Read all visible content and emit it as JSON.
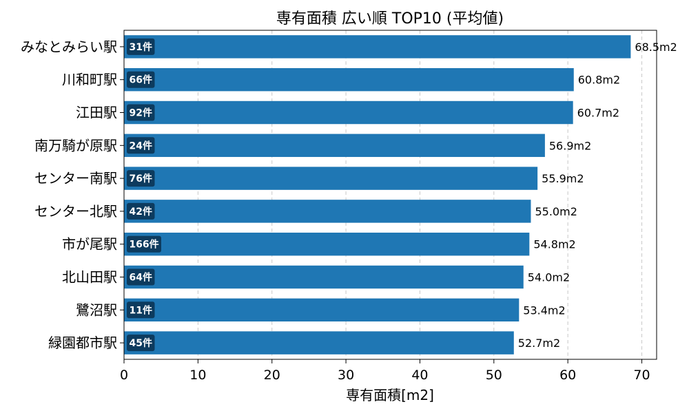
{
  "chart_data": {
    "type": "bar",
    "orientation": "horizontal",
    "title": "専有面積 広い順 TOP10 (平均値)",
    "xlabel": "専有面積[m2]",
    "ylabel": "",
    "xlim": [
      0,
      72
    ],
    "xticks": [
      0,
      10,
      20,
      30,
      40,
      50,
      60,
      70
    ],
    "grid": "x-dashed",
    "bar_color": "#1f77b4",
    "badge_color": "#0d3b5e",
    "value_suffix": "m2",
    "categories": [
      "みなとみらい駅",
      "川和町駅",
      "江田駅",
      "南万騎が原駅",
      "センター南駅",
      "センター北駅",
      "市が尾駅",
      "北山田駅",
      "鷺沼駅",
      "緑園都市駅"
    ],
    "values": [
      68.5,
      60.8,
      60.7,
      56.9,
      55.9,
      55.0,
      54.8,
      54.0,
      53.4,
      52.7
    ],
    "value_labels": [
      "68.5m2",
      "60.8m2",
      "60.7m2",
      "56.9m2",
      "55.9m2",
      "55.0m2",
      "54.8m2",
      "54.0m2",
      "53.4m2",
      "52.7m2"
    ],
    "counts": [
      "31件",
      "66件",
      "92件",
      "24件",
      "76件",
      "42件",
      "166件",
      "64件",
      "11件",
      "45件"
    ]
  }
}
